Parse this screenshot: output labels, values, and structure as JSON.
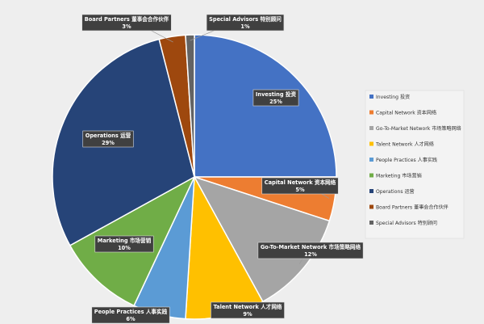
{
  "chart_data": {
    "type": "pie",
    "legend_position": "right",
    "slices": [
      {
        "label": "Investing 投资",
        "value": 25,
        "pct_label": "25%",
        "color": "#4472c4"
      },
      {
        "label": "Capital Network 资本网络",
        "value": 5,
        "pct_label": "5%",
        "color": "#ed7d31"
      },
      {
        "label": "Go-To-Market Network 市场策略网络",
        "value": 12,
        "pct_label": "12%",
        "color": "#a5a5a5"
      },
      {
        "label": "Talent Network 人才网络",
        "value": 9,
        "pct_label": "9%",
        "color": "#ffc000"
      },
      {
        "label": "People Practices 人事实践",
        "value": 6,
        "pct_label": "6%",
        "color": "#5b9bd5"
      },
      {
        "label": "Marketing 市场营销",
        "value": 10,
        "pct_label": "10%",
        "color": "#70ad47"
      },
      {
        "label": "Operations 运营",
        "value": 29,
        "pct_label": "29%",
        "color": "#264478"
      },
      {
        "label": "Board Partners 董事会合作伙伴",
        "value": 3,
        "pct_label": "3%",
        "color": "#9e480e"
      },
      {
        "label": "Special Advisors 特别顾问",
        "value": 1,
        "pct_label": "1%",
        "color": "#636363"
      }
    ]
  }
}
